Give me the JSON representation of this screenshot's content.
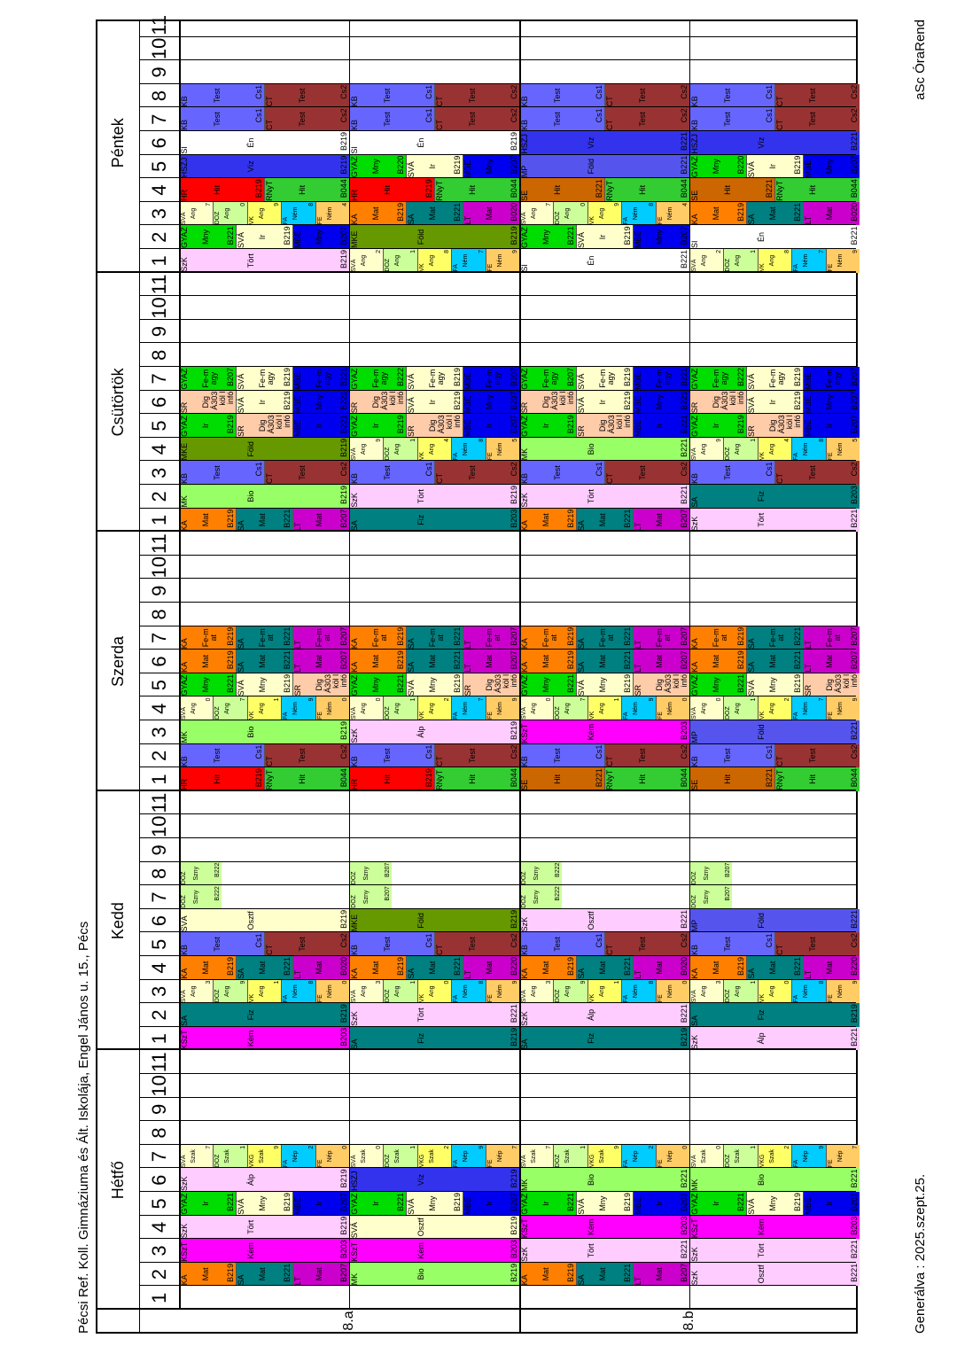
{
  "header": {
    "title": "Pécsi Ref. Koll. Gimnáziuma és Ált. Iskolája, Engel János u. 15., Pécs"
  },
  "footer": {
    "generated": "Generálva : 2025.szept.25.",
    "brand": "aSc ÓraRend"
  },
  "days": [
    "Hétfő",
    "Kedd",
    "Szerda",
    "Csütörtök",
    "Péntek"
  ],
  "periods": [
    "1",
    "2",
    "3",
    "4",
    "5",
    "6",
    "7",
    "8",
    "9",
    "10",
    "11"
  ],
  "lessons": {
    "KA_Mat": {
      "t": "KA",
      "s": "Mat",
      "r": "B219",
      "c": "#ff8000"
    },
    "SA_Mat": {
      "t": "SA",
      "s": "Mat",
      "r": "B221",
      "c": "#008080"
    },
    "LT_Mat": {
      "t": "LT",
      "s": "Mat",
      "r": "B207",
      "c": "#cc00cc"
    },
    "KSz_Kem": {
      "t": "KSzT",
      "s": "Kém",
      "r": "B203",
      "c": "#ff00ff"
    },
    "SzK_Tort": {
      "t": "SzK",
      "s": "Tört",
      "r": "B219",
      "c": "#ffccff"
    },
    "SzK_Alp": {
      "t": "SzK",
      "s": "Álp",
      "r": "B219",
      "c": "#ffccff"
    },
    "SzK_Osz": {
      "t": "SzK",
      "s": "Osztf",
      "r": "B221",
      "c": "#ffccff"
    },
    "SVA_Osz": {
      "t": "SVÁ",
      "s": "Osztf",
      "r": "B219",
      "c": "#ffffcc"
    },
    "SA_Fiz": {
      "t": "SA",
      "s": "Fiz",
      "r": "B219",
      "c": "#008080"
    },
    "MK_Bio": {
      "t": "MK",
      "s": "Bio",
      "r": "B219",
      "c": "#99ff66"
    },
    "MKE_Fold": {
      "t": "MKE",
      "s": "Föld",
      "r": "B219",
      "c": "#669900"
    },
    "MP_Fold": {
      "t": "MP",
      "s": "Föld",
      "r": "B221",
      "c": "#5555ee"
    },
    "HSZ_Viz": {
      "t": "HSZJ",
      "s": "Víz",
      "r": "B219",
      "c": "#3333ee"
    },
    "GYA_Ir": {
      "t": "GYAZ",
      "s": "Ir",
      "r": "B221",
      "c": "#00dd00"
    },
    "GYA_Mny": {
      "t": "GYAZ",
      "s": "Mny",
      "r": "B221",
      "c": "#00dd00"
    },
    "GYA_Fe": {
      "t": "GYAZ",
      "s": "Fe-magy",
      "r": "B207",
      "c": "#00dd00"
    },
    "SVA_Mny": {
      "t": "SVÁ",
      "s": "Mny",
      "r": "B219",
      "c": "#ffffcc"
    },
    "SVA_Ir": {
      "t": "SVÁ",
      "s": "Ir",
      "r": "B219",
      "c": "#ffffcc"
    },
    "SVA_Fe": {
      "t": "SVÁ",
      "s": "Fe-magy",
      "r": "B219",
      "c": "#ffffcc"
    },
    "MBE_Ir": {
      "t": "MBE",
      "s": "Ir",
      "r": "B207",
      "c": "#0000ee"
    },
    "MBE_Mny": {
      "t": "MBE",
      "s": "Mny",
      "r": "B207",
      "c": "#0000ee"
    },
    "MBE_Fe": {
      "t": "MBE",
      "s": "Fe-magy",
      "r": "B221",
      "c": "#0000ee"
    },
    "SR_Dig": {
      "t": "SR",
      "s": "Dig",
      "r": "Á303 köl l infó",
      "c": "#ffccaa"
    },
    "KA_Fe": {
      "t": "KA",
      "s": "Fe-mat",
      "r": "B219",
      "c": "#ff8000"
    },
    "SA_Fe": {
      "t": "SA",
      "s": "Fe-mat",
      "r": "B221",
      "c": "#008080"
    },
    "LT_Fe": {
      "t": "LT",
      "s": "Fe-mat",
      "r": "B207",
      "c": "#cc00cc"
    },
    "KB_Test": {
      "t": "KB",
      "s": "Test",
      "r": "Cs1",
      "c": "#6666ff"
    },
    "CT_Test": {
      "t": "CT",
      "s": "Test",
      "r": "Cs2",
      "c": "#993333"
    },
    "HR_Hit": {
      "t": "HR",
      "s": "Hit",
      "r": "B219",
      "c": "#ff0000"
    },
    "RNy_Hit": {
      "t": "RNyT",
      "s": "Hit",
      "r": "B044",
      "c": "#33cc33"
    },
    "SE_Hit": {
      "t": "SE",
      "s": "Hit",
      "r": "B221",
      "c": "#cc6600"
    },
    "SI_En": {
      "t": "SI",
      "s": "Én",
      "r": "B219",
      "c": "#ffffff"
    },
    "DOZ_Szny": {
      "t": "DÖZ",
      "s": "Szny",
      "r": "B222",
      "c": "#ccff99"
    },
    "SVA_Ang": {
      "t": "SVÁ",
      "s": "Ang",
      "r": "",
      "c": "#ffffcc"
    },
    "DOZ_Ang": {
      "t": "DÖZ",
      "s": "Ang",
      "r": "",
      "c": "#ccff99"
    },
    "VK_Ang": {
      "t": "VK",
      "s": "Ang",
      "r": "",
      "c": "#ffff66"
    },
    "FA_Nem": {
      "t": "FA",
      "s": "Ném",
      "r": "",
      "c": "#00ccff"
    },
    "FE_Nem": {
      "t": "FE",
      "s": "Ném",
      "r": "",
      "c": "#ffcc66"
    },
    "SVA_Szak": {
      "t": "SVÁ",
      "s": "Szak",
      "r": "",
      "c": "#ffffcc"
    },
    "DOZ_Szak": {
      "t": "DÖZ",
      "s": "Szak",
      "r": "",
      "c": "#ccff99"
    },
    "VKG_Szak": {
      "t": "VKG",
      "s": "Szak",
      "r": "",
      "c": "#ffff66"
    },
    "FA_Nep": {
      "t": "FA",
      "s": "Nép",
      "r": "",
      "c": "#00ccff"
    },
    "FE_Nep": {
      "t": "FE",
      "s": "Nép",
      "r": "",
      "c": "#ffcc66"
    }
  },
  "classes": [
    {
      "name": "8.a",
      "halves": [
        [
          [
            null,
            [
              "KA_Mat",
              "SA_Mat",
              "LT_Mat"
            ],
            [
              "KSz_Kem"
            ],
            [
              "SzK_Tort"
            ],
            [
              "GYA_Ir",
              "SVA_Mny",
              "MBE_Ir"
            ],
            [
              "SzK_Alp"
            ],
            [
              "SVA_Szak:7",
              "DOZ_Szak:1",
              "VKG_Szak:9",
              "FA_Nep:2",
              "FE_Nep:0"
            ]
          ],
          [
            [
              "KSz_Kem"
            ],
            [
              "SA_Fiz"
            ],
            [
              "SVA_Ang:3",
              "DOZ_Ang:9",
              "VK_Ang:1",
              "FA_Nem:8",
              "FE_Nem:0"
            ],
            [
              "KA_Mat",
              "SA_Mat",
              "LT_Mat:B020"
            ],
            [
              "KB_Test",
              "CT_Test"
            ],
            [
              "SVA_Osz"
            ],
            [
              "DOZ_Szny",
              null,
              null,
              null
            ],
            [
              "DOZ_Szny",
              null,
              null,
              null
            ]
          ],
          [
            [
              "HR_Hit",
              "RNy_Hit"
            ],
            [
              "KB_Test",
              "CT_Test"
            ],
            [
              "MK_Bio"
            ],
            [
              "SVA_Ang:0",
              "DOZ_Ang:7",
              "VK_Ang:1",
              "FA_Nem:9",
              "FE_Nem:0"
            ],
            [
              "GYA_Mny",
              "SVA_Mny",
              "SR_Dig"
            ],
            [
              "KA_Mat",
              "SA_Mat",
              "LT_Mat"
            ],
            [
              "KA_Fe",
              "SA_Fe",
              "LT_Fe"
            ]
          ],
          [
            [
              "KA_Mat",
              "SA_Mat",
              "LT_Mat"
            ],
            [
              "MK_Bio"
            ],
            [
              "KB_Test",
              "CT_Test"
            ],
            [
              "MKE_Fold"
            ],
            [
              "GYA_Ir:B219",
              "SR_Dig",
              "MBE_Ir:B221"
            ],
            [
              "SR_Dig",
              "SVA_Ir",
              "MBE_Mny:B221"
            ],
            [
              "GYA_Fe",
              "SVA_Fe",
              "MBE_Fe"
            ]
          ],
          [
            [
              "SzK_Tort"
            ],
            [
              "GYA_Mny",
              "SVA_Ir",
              "MBE_Mny"
            ],
            [
              "SVA_Ang:7",
              "DOZ_Ang:0",
              "VK_Ang:9",
              "FA_Nem:8",
              "FE_Nem:4"
            ],
            [
              "HR_Hit",
              "RNy_Hit"
            ],
            [
              "HSZ_Viz"
            ],
            [
              "SI_En"
            ],
            [
              "KB_Test",
              "CT_Test"
            ],
            [
              "KB_Test",
              "CT_Test"
            ]
          ]
        ],
        [
          [
            null,
            [
              "MK_Bio"
            ],
            [
              "KSz_Kem"
            ],
            [
              "SVA_Osz"
            ],
            [
              "GYA_Ir",
              "SVA_Mny",
              "MBE_Ir"
            ],
            [
              "HSZ_Viz"
            ],
            [
              "SVA_Szak:0",
              "DOZ_Szak:1",
              "VKG_Szak:2",
              "FA_Nep:9",
              "FE_Nep:7"
            ]
          ],
          [
            [
              "SA_Fiz"
            ],
            [
              "SzK_Tort:B221"
            ],
            [
              "SVA_Ang:3",
              "DOZ_Ang:1",
              "VK_Ang:0",
              "FA_Nem:8",
              "FE_Nem:9"
            ],
            [
              "KA_Mat",
              "SA_Mat",
              "LT_Mat:B220"
            ],
            [
              "KB_Test",
              "CT_Test"
            ],
            [
              "MKE_Fold"
            ],
            [
              "DOZ_Szny:B207",
              null,
              null,
              null
            ],
            [
              "DOZ_Szny:B207",
              null,
              null,
              null
            ]
          ],
          [
            [
              "HR_Hit",
              "RNy_Hit"
            ],
            [
              "KB_Test",
              "CT_Test"
            ],
            [
              "SzK_Alp"
            ],
            [
              "SVA_Ang:0",
              "DOZ_Ang:1",
              "VK_Ang:2",
              "FA_Nem:7",
              "FE_Nem:9"
            ],
            [
              "GYA_Mny",
              "SVA_Mny",
              "SR_Dig"
            ],
            [
              "KA_Mat",
              "SA_Mat",
              "LT_Mat"
            ],
            [
              "KA_Fe",
              "SA_Fe",
              "LT_Fe"
            ]
          ],
          [
            [
              "SA_Fiz:B203"
            ],
            [
              "SzK_Tort"
            ],
            [
              "KB_Test",
              "CT_Test"
            ],
            [
              "SVA_Ang:9",
              "DOZ_Ang:1",
              "VK_Ang:4",
              "FA_Nem:8",
              "FE_Nem:5"
            ],
            [
              "GYA_Ir:B219",
              "SR_Dig",
              "MBE_Ir"
            ],
            [
              "SR_Dig",
              "SVA_Ir",
              "MBE_Mny"
            ],
            [
              "GYA_Fe:B222",
              "SVA_Fe",
              "MBE_Fe:B207"
            ]
          ],
          [
            [
              "SVA_Ang:2",
              "DOZ_Ang:1",
              "VK_Ang:8",
              "FA_Nem:7",
              "FE_Nem:9"
            ],
            [
              "MKE_Fold"
            ],
            [
              "KA_Mat",
              "SA_Mat",
              "LT_Mat:B020"
            ],
            [
              "HR_Hit",
              "RNy_Hit"
            ],
            [
              "GYA_Mny:B220",
              "SVA_Ir",
              "MBE_Mny"
            ],
            [
              "SI_En"
            ],
            [
              "KB_Test",
              "CT_Test"
            ],
            [
              "KB_Test",
              "CT_Test"
            ]
          ]
        ]
      ]
    },
    {
      "name": "8.b",
      "halves": [
        [
          [
            null,
            [
              "KA_Mat",
              "SA_Mat",
              "LT_Mat"
            ],
            [
              "SzK_Tort:B221"
            ],
            [
              "KSz_Kem"
            ],
            [
              "GYA_Ir",
              "SVA_Mny",
              "MBE_Ir"
            ],
            [
              "MK_Bio:B221"
            ],
            [
              "SVA_Szak:7",
              "DOZ_Szak:1",
              "VKG_Szak:9",
              "FA_Nep:2",
              "FE_Nep:0"
            ]
          ],
          [
            [
              "SA_Fiz"
            ],
            [
              "SzK_Alp:B221"
            ],
            [
              "SVA_Ang:3",
              "DOZ_Ang:9",
              "VK_Ang:1",
              "FA_Nem:8",
              "FE_Nem:0"
            ],
            [
              "KA_Mat",
              "SA_Mat",
              "LT_Mat:B020"
            ],
            [
              "KB_Test",
              "CT_Test"
            ],
            [
              "SzK_Osz"
            ],
            [
              "DOZ_Szny",
              null,
              null,
              null
            ],
            [
              "DOZ_Szny",
              null,
              null,
              null
            ]
          ],
          [
            [
              "SE_Hit",
              "RNy_Hit"
            ],
            [
              "KB_Test",
              "CT_Test"
            ],
            [
              "KSz_Kem"
            ],
            [
              "SVA_Ang:0",
              "DOZ_Ang:7",
              "VK_Ang:1",
              "FA_Nem:9",
              "FE_Nem:0"
            ],
            [
              "GYA_Mny",
              "SVA_Mny",
              "SR_Dig"
            ],
            [
              "KA_Mat",
              "SA_Mat",
              "LT_Mat"
            ],
            [
              "KA_Fe",
              "SA_Fe",
              "LT_Fe"
            ]
          ],
          [
            [
              "KA_Mat",
              "SA_Mat",
              "LT_Mat"
            ],
            [
              "SzK_Tort:B221"
            ],
            [
              "KB_Test",
              "CT_Test"
            ],
            [
              "MK_Bio:B221"
            ],
            [
              "GYA_Ir:B219",
              "SR_Dig",
              "MBE_Ir:B221"
            ],
            [
              "SR_Dig",
              "SVA_Ir",
              "MBE_Mny:B221"
            ],
            [
              "GYA_Fe",
              "SVA_Fe",
              "MBE_Fe"
            ]
          ],
          [
            [
              "SI_En:B221"
            ],
            [
              "GYA_Mny",
              "SVA_Ir",
              "MBE_Mny"
            ],
            [
              "SVA_Ang:7",
              "DOZ_Ang:0",
              "VK_Ang:9",
              "FA_Nem:8",
              "FE_Nem:4"
            ],
            [
              "SE_Hit",
              "RNy_Hit"
            ],
            [
              "MP_Fold"
            ],
            [
              "HSZ_Viz:B221"
            ],
            [
              "KB_Test",
              "CT_Test"
            ],
            [
              "KB_Test",
              "CT_Test"
            ]
          ]
        ],
        [
          [
            null,
            [
              "SzK_Osz"
            ],
            [
              "SzK_Tort:B221"
            ],
            [
              "KSz_Kem"
            ],
            [
              "GYA_Ir",
              "SVA_Mny",
              "MBE_Ir"
            ],
            [
              "MK_Bio:B221"
            ],
            [
              "SVA_Szak:0",
              "DOZ_Szak:1",
              "VKG_Szak:2",
              "FA_Nep:9",
              "FE_Nep:7"
            ]
          ],
          [
            [
              "SzK_Alp:B221"
            ],
            [
              "SA_Fiz"
            ],
            [
              "SVA_Ang:3",
              "DOZ_Ang:1",
              "VK_Ang:0",
              "FA_Nem:8",
              "FE_Nem:9"
            ],
            [
              "KA_Mat",
              "SA_Mat",
              "LT_Mat:B220"
            ],
            [
              "KB_Test",
              "CT_Test"
            ],
            [
              "MP_Fold"
            ],
            [
              "DOZ_Szny:B207",
              null,
              null,
              null
            ],
            [
              "DOZ_Szny:B207",
              null,
              null,
              null
            ]
          ],
          [
            [
              "SE_Hit",
              "RNy_Hit"
            ],
            [
              "KB_Test",
              "CT_Test"
            ],
            [
              "MP_Fold"
            ],
            [
              "SVA_Ang:0",
              "DOZ_Ang:1",
              "VK_Ang:2",
              "FA_Nem:7",
              "FE_Nem:9"
            ],
            [
              "GYA_Mny",
              "SVA_Mny",
              "SR_Dig"
            ],
            [
              "KA_Mat",
              "SA_Mat",
              "LT_Mat"
            ],
            [
              "KA_Fe",
              "SA_Fe",
              "LT_Fe"
            ]
          ],
          [
            [
              "SzK_Tort:B221"
            ],
            [
              "SA_Fiz:B203"
            ],
            [
              "KB_Test",
              "CT_Test"
            ],
            [
              "SVA_Ang:9",
              "DOZ_Ang:1",
              "VK_Ang:4",
              "FA_Nem:8",
              "FE_Nem:5"
            ],
            [
              "GYA_Ir:B219",
              "SR_Dig",
              "MBE_Ir"
            ],
            [
              "SR_Dig",
              "SVA_Ir",
              "MBE_Mny"
            ],
            [
              "GYA_Fe:B222",
              "SVA_Fe",
              "MBE_Fe:B207"
            ]
          ],
          [
            [
              "SVA_Ang:2",
              "DOZ_Ang:1",
              "VK_Ang:8",
              "FA_Nem:7",
              "FE_Nem:9"
            ],
            [
              "SI_En:B221"
            ],
            [
              "KA_Mat",
              "SA_Mat",
              "LT_Mat:B020"
            ],
            [
              "SE_Hit",
              "RNy_Hit"
            ],
            [
              "GYA_Mny:B220",
              "SVA_Ir",
              "MBE_Mny"
            ],
            [
              "HSZ_Viz:B221"
            ],
            [
              "KB_Test",
              "CT_Test"
            ],
            [
              "KB_Test",
              "CT_Test"
            ]
          ]
        ]
      ]
    }
  ]
}
